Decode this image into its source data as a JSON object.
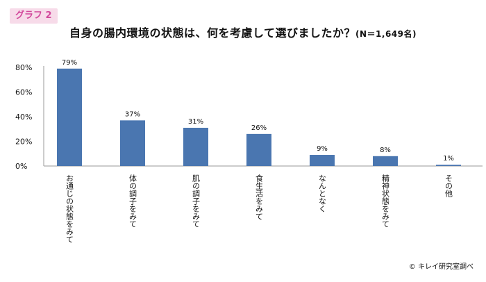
{
  "badge_label": "グラフ 2",
  "title": "自身の腸内環境の状態は、何を考慮して選びましたか？",
  "title_n": "(N＝1,649名)",
  "credit": "© キレイ研究室調べ",
  "colors": {
    "bar": "#4a76b0",
    "badge_bg": "#f7dbe9",
    "badge_text": "#d2479b"
  },
  "chart_data": {
    "type": "bar",
    "categories": [
      "お通じの状態をみて",
      "体の調子をみて",
      "肌の調子をみて",
      "食生活をみて",
      "なんとなく",
      "精神状態をみて",
      "その他"
    ],
    "values": [
      79,
      37,
      31,
      26,
      9,
      8,
      1
    ],
    "value_labels": [
      "79%",
      "37%",
      "31%",
      "26%",
      "9%",
      "8%",
      "1%"
    ],
    "y_ticks": [
      0,
      20,
      40,
      60,
      80
    ],
    "y_tick_labels": [
      "0%",
      "20%",
      "40%",
      "60%",
      "80%"
    ],
    "ylim": [
      0,
      80
    ],
    "grid": false,
    "xlabel": "",
    "ylabel": ""
  }
}
